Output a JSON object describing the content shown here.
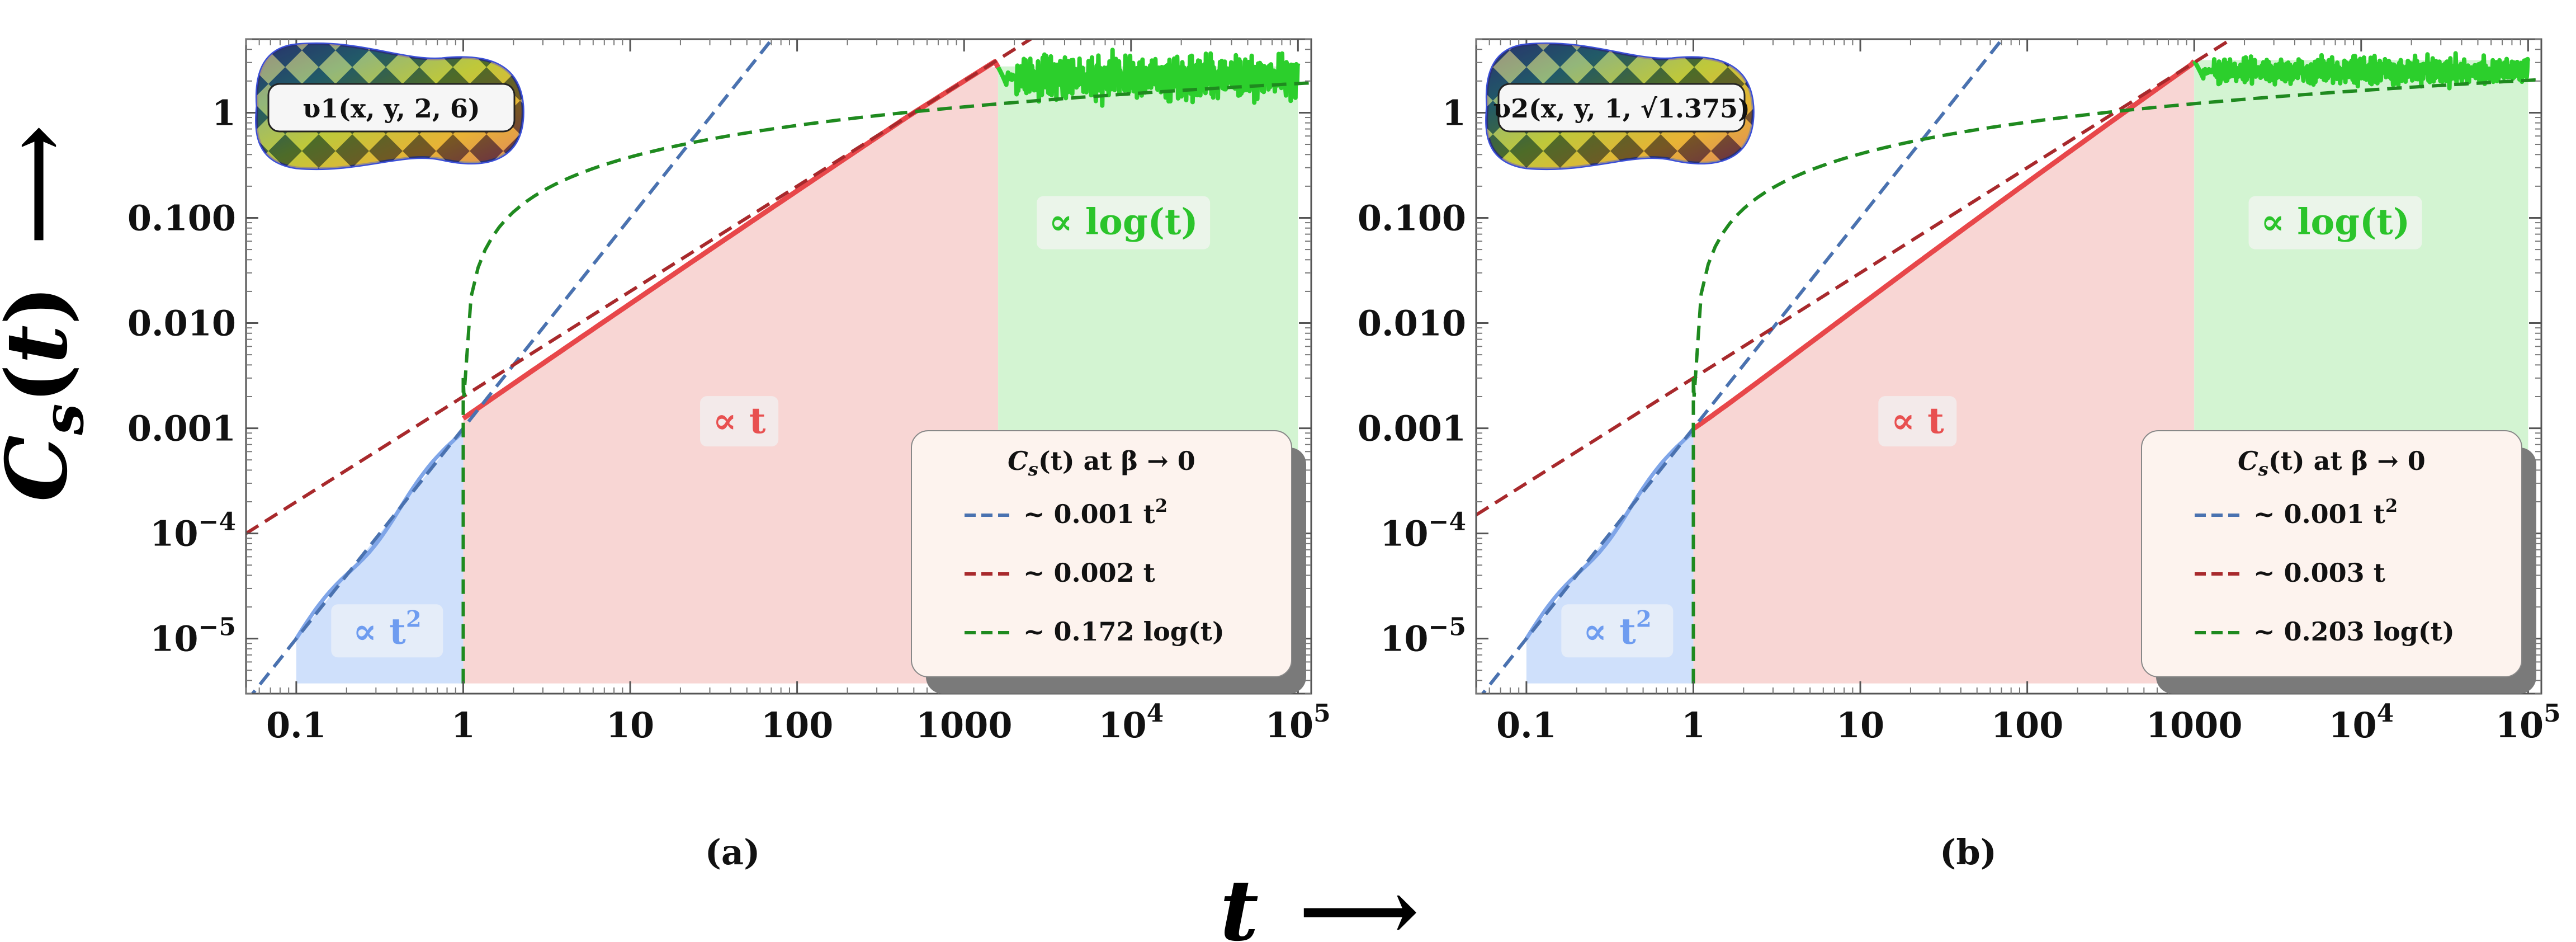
{
  "figure": {
    "ylabel": "C_s(t) →",
    "xlabel": "t →",
    "colors": {
      "t2_fill": "#cfe0fb",
      "t_fill": "#f8d6d4",
      "log_fill": "#d3f4d2",
      "blue_dash": "#4a72b0",
      "red_dash": "#a8292c",
      "green_dash": "#1f8a1f",
      "red_curve": "#e8474a",
      "green_curve": "#2ccf2c",
      "t2_text": "#6e9cf0",
      "t_text": "#e85050",
      "log_text": "#2bc42b"
    }
  },
  "chart_data": [
    {
      "type": "line",
      "panel_label": "(a)",
      "model_label": "υ1(x, y, 2, 6)",
      "xscale": "log",
      "yscale": "log",
      "xlim": [
        0.05,
        120000
      ],
      "ylim": [
        3e-06,
        5
      ],
      "xticks": [
        {
          "v": 0.1,
          "label": "0.1"
        },
        {
          "v": 1,
          "label": "1"
        },
        {
          "v": 10,
          "label": "10"
        },
        {
          "v": 100,
          "label": "100"
        },
        {
          "v": 1000,
          "label": "1000"
        },
        {
          "v": 10000,
          "base": "10",
          "exp": "4"
        },
        {
          "v": 100000,
          "base": "10",
          "exp": "5"
        }
      ],
      "yticks": [
        {
          "v": 1e-05,
          "base": "10",
          "exp": "−5"
        },
        {
          "v": 0.0001,
          "base": "10",
          "exp": "−4"
        },
        {
          "v": 0.001,
          "label": "0.001"
        },
        {
          "v": 0.01,
          "label": "0.010"
        },
        {
          "v": 0.1,
          "label": "0.100"
        },
        {
          "v": 1,
          "label": "1"
        }
      ],
      "regions": [
        {
          "name": "t2",
          "from": 0.1,
          "to": 1,
          "label": "∝ t",
          "label_sup": "2"
        },
        {
          "name": "t",
          "from": 1,
          "to": 1600,
          "label": "∝ t",
          "label_sup": ""
        },
        {
          "name": "log",
          "from": 1600,
          "to": 100000,
          "label": "∝ log(t)",
          "label_sup": ""
        }
      ],
      "crossover": [
        1,
        1600
      ],
      "fits": {
        "quadratic": {
          "coef": 0.001,
          "label": "~ 0.001 t",
          "label_sup": "2"
        },
        "linear": {
          "coef": 0.002,
          "label": "~ 0.002 t"
        },
        "log": {
          "coef": 0.172,
          "label": "~ 0.172 log(t)"
        }
      },
      "legend_title": "C_s(t) at β → 0",
      "legend_position": "lower-right"
    },
    {
      "type": "line",
      "panel_label": "(b)",
      "model_label": "υ2(x, y, 1, √1.375)",
      "xscale": "log",
      "yscale": "log",
      "xlim": [
        0.05,
        120000
      ],
      "ylim": [
        3e-06,
        5
      ],
      "xticks": [
        {
          "v": 0.1,
          "label": "0.1"
        },
        {
          "v": 1,
          "label": "1"
        },
        {
          "v": 10,
          "label": "10"
        },
        {
          "v": 100,
          "label": "100"
        },
        {
          "v": 1000,
          "label": "1000"
        },
        {
          "v": 10000,
          "base": "10",
          "exp": "4"
        },
        {
          "v": 100000,
          "base": "10",
          "exp": "5"
        }
      ],
      "yticks": [
        {
          "v": 1e-05,
          "base": "10",
          "exp": "−5"
        },
        {
          "v": 0.0001,
          "base": "10",
          "exp": "−4"
        },
        {
          "v": 0.001,
          "label": "0.001"
        },
        {
          "v": 0.01,
          "label": "0.010"
        },
        {
          "v": 0.1,
          "label": "0.100"
        },
        {
          "v": 1,
          "label": "1"
        }
      ],
      "regions": [
        {
          "name": "t2",
          "from": 0.1,
          "to": 1,
          "label": "∝ t",
          "label_sup": "2"
        },
        {
          "name": "t",
          "from": 1,
          "to": 1000,
          "label": "∝ t",
          "label_sup": ""
        },
        {
          "name": "log",
          "from": 1000,
          "to": 100000,
          "label": "∝ log(t)",
          "label_sup": ""
        }
      ],
      "crossover": [
        1,
        1000
      ],
      "fits": {
        "quadratic": {
          "coef": 0.001,
          "label": "~ 0.001 t",
          "label_sup": "2"
        },
        "linear": {
          "coef": 0.003,
          "label": "~ 0.003 t"
        },
        "log": {
          "coef": 0.203,
          "label": "~ 0.203 log(t)"
        }
      },
      "legend_title": "C_s(t) at β → 0",
      "legend_position": "lower-right"
    }
  ]
}
